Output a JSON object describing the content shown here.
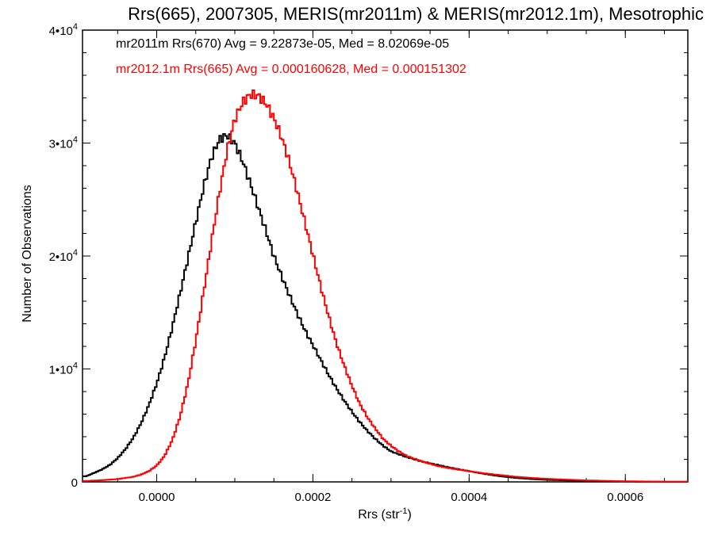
{
  "chart_data": {
    "type": "line",
    "title": "Rrs(665), 2007305, MERIS(mr2011m) & MERIS(mr2012.1m), Mesotrophic",
    "xlabel_main": "Rrs (str",
    "xlabel_sup": "-1",
    "xlabel_close": ")",
    "ylabel": "Number of Observations",
    "xlim": [
      -9.5e-05,
      0.00068
    ],
    "ylim": [
      0,
      40000
    ],
    "x_ticks": [
      {
        "value": 0.0,
        "label": "0.0000"
      },
      {
        "value": 0.0002,
        "label": "0.0002"
      },
      {
        "value": 0.0004,
        "label": "0.0004"
      },
      {
        "value": 0.0006,
        "label": "0.0006"
      }
    ],
    "y_ticks": [
      {
        "value": 0,
        "base": "0",
        "exp": ""
      },
      {
        "value": 10000,
        "base": "1•10",
        "exp": "4"
      },
      {
        "value": 20000,
        "base": "2•10",
        "exp": "4"
      },
      {
        "value": 30000,
        "base": "3•10",
        "exp": "4"
      },
      {
        "value": 40000,
        "base": "4•10",
        "exp": "4"
      }
    ],
    "grid": false,
    "legend_position": "top-left",
    "series": [
      {
        "name": "mr2011m Rrs(670) Avg = 9.22873e-05, Med = 8.02069e-05",
        "color": "#000000",
        "x": [
          -9e-05,
          -8e-05,
          -7e-05,
          -6e-05,
          -5e-05,
          -4e-05,
          -3e-05,
          -2e-05,
          -1e-05,
          0.0,
          1e-05,
          2e-05,
          3e-05,
          4e-05,
          5e-05,
          6e-05,
          7e-05,
          8e-05,
          9e-05,
          0.0001,
          0.00011,
          0.00012,
          0.00013,
          0.00014,
          0.00015,
          0.00016,
          0.00017,
          0.00018,
          0.00019,
          0.0002,
          0.00021,
          0.00022,
          0.00023,
          0.00024,
          0.00025,
          0.00026,
          0.00027,
          0.00028,
          0.00029,
          0.0003,
          0.00032,
          0.00034,
          0.00036,
          0.00038,
          0.0004,
          0.00042,
          0.00044,
          0.00046,
          0.00048,
          0.0005,
          0.00055,
          0.0006,
          0.00065
        ],
        "y": [
          500,
          800,
          1100,
          1500,
          2100,
          2900,
          3900,
          5200,
          6800,
          8700,
          11000,
          13700,
          16700,
          19800,
          23000,
          26100,
          28700,
          30300,
          30700,
          30000,
          28400,
          26400,
          24300,
          22200,
          20000,
          18200,
          16500,
          14900,
          13400,
          12100,
          10800,
          9500,
          8300,
          7200,
          6200,
          5300,
          4500,
          3800,
          3200,
          2700,
          2200,
          1800,
          1500,
          1200,
          950,
          700,
          500,
          350,
          250,
          180,
          80,
          30,
          10
        ]
      },
      {
        "name": "mr2012.1m Rrs(665) Avg = 0.000160628, Med = 0.000151302",
        "color": "#ff0000",
        "x": [
          -9e-05,
          -7e-05,
          -5e-05,
          -3e-05,
          -2e-05,
          -1e-05,
          0.0,
          1e-05,
          2e-05,
          3e-05,
          4e-05,
          5e-05,
          6e-05,
          7e-05,
          8e-05,
          9e-05,
          0.0001,
          0.00011,
          0.00012,
          0.00013,
          0.00014,
          0.00015,
          0.00016,
          0.00017,
          0.00018,
          0.00019,
          0.0002,
          0.00021,
          0.00022,
          0.00023,
          0.00024,
          0.00025,
          0.00026,
          0.00027,
          0.00028,
          0.00029,
          0.0003,
          0.00031,
          0.00032,
          0.00034,
          0.00036,
          0.00038,
          0.0004,
          0.00042,
          0.00044,
          0.00046,
          0.00048,
          0.0005,
          0.00055,
          0.0006,
          0.00065
        ],
        "y": [
          80,
          150,
          250,
          450,
          650,
          950,
          1450,
          2300,
          3700,
          5800,
          8700,
          12500,
          16800,
          21200,
          25500,
          29300,
          32100,
          33600,
          34300,
          34200,
          33500,
          32200,
          30500,
          28300,
          25700,
          22900,
          20100,
          17300,
          14700,
          12300,
          10300,
          8500,
          6900,
          5700,
          4700,
          3800,
          3200,
          2700,
          2300,
          1800,
          1400,
          1150,
          950,
          750,
          600,
          450,
          350,
          270,
          130,
          55,
          20
        ]
      }
    ]
  }
}
